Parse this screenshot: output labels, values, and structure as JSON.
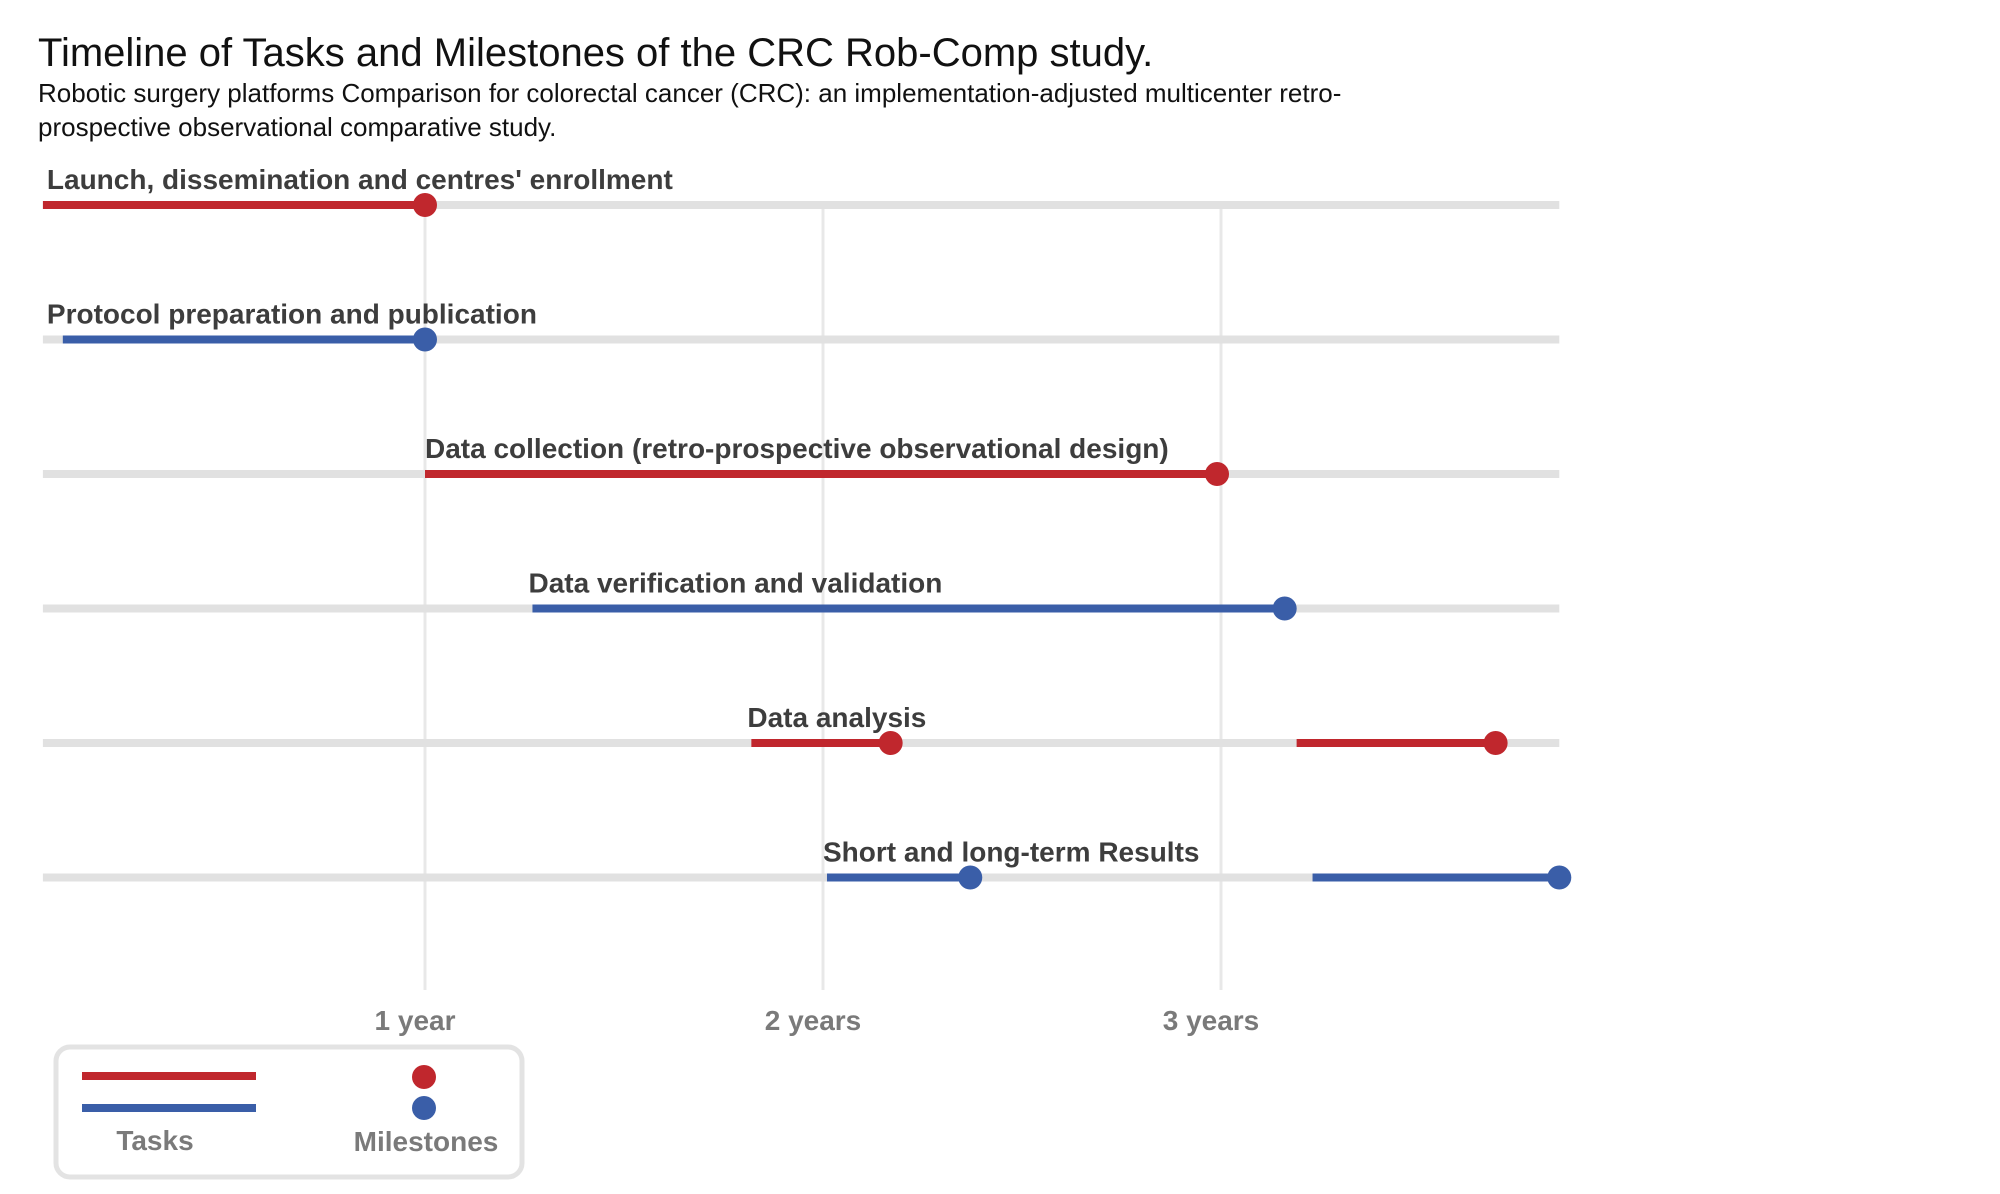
{
  "chart_data": {
    "type": "timeline",
    "title": "Timeline of Tasks and Milestones of the CRC Rob-Comp study.",
    "subtitle_lines": [
      "Robotic surgery platforms Comparison for colorectal cancer (CRC): an implementation-adjusted multicenter retro-",
      "prospective observational comparative study."
    ],
    "x_unit": "years",
    "xlim": [
      0.04,
      3.85
    ],
    "x_ticks": [
      {
        "value": 1,
        "label": "1 year"
      },
      {
        "value": 2,
        "label": "2 years"
      },
      {
        "value": 3,
        "label": "3 years"
      }
    ],
    "colors": {
      "red": "#c0272d",
      "blue": "#3a5ea8",
      "track": "#e1e1e1",
      "grid": "#e8e8e8"
    },
    "rows": [
      {
        "label": "Launch, dissemination and centres' enrollment",
        "label_x": 0.05,
        "color": "red",
        "tasks": [
          [
            0.04,
            1.0
          ]
        ],
        "milestones": [
          1.0
        ]
      },
      {
        "label": "Protocol preparation and publication",
        "label_x": 0.05,
        "color": "blue",
        "tasks": [
          [
            0.09,
            1.0
          ]
        ],
        "milestones": [
          1.0
        ]
      },
      {
        "label": "Data collection (retro-prospective observational design)",
        "label_x": 1.0,
        "color": "red",
        "tasks": [
          [
            1.0,
            2.99
          ]
        ],
        "milestones": [
          2.99
        ]
      },
      {
        "label": "Data verification and validation",
        "label_x": 1.26,
        "color": "blue",
        "tasks": [
          [
            1.27,
            3.16
          ]
        ],
        "milestones": [
          3.16
        ]
      },
      {
        "label": "Data analysis",
        "label_x": 1.81,
        "color": "red",
        "tasks": [
          [
            1.82,
            2.17
          ],
          [
            3.19,
            3.69
          ]
        ],
        "milestones": [
          2.17,
          3.69
        ]
      },
      {
        "label": "Short and long-term Results",
        "label_x": 2.0,
        "color": "blue",
        "tasks": [
          [
            2.01,
            2.37
          ],
          [
            3.23,
            3.85
          ]
        ],
        "milestones": [
          2.37,
          3.85
        ]
      }
    ],
    "legend": {
      "position": "bottom-left",
      "items": [
        "Tasks",
        "Milestones"
      ]
    }
  }
}
